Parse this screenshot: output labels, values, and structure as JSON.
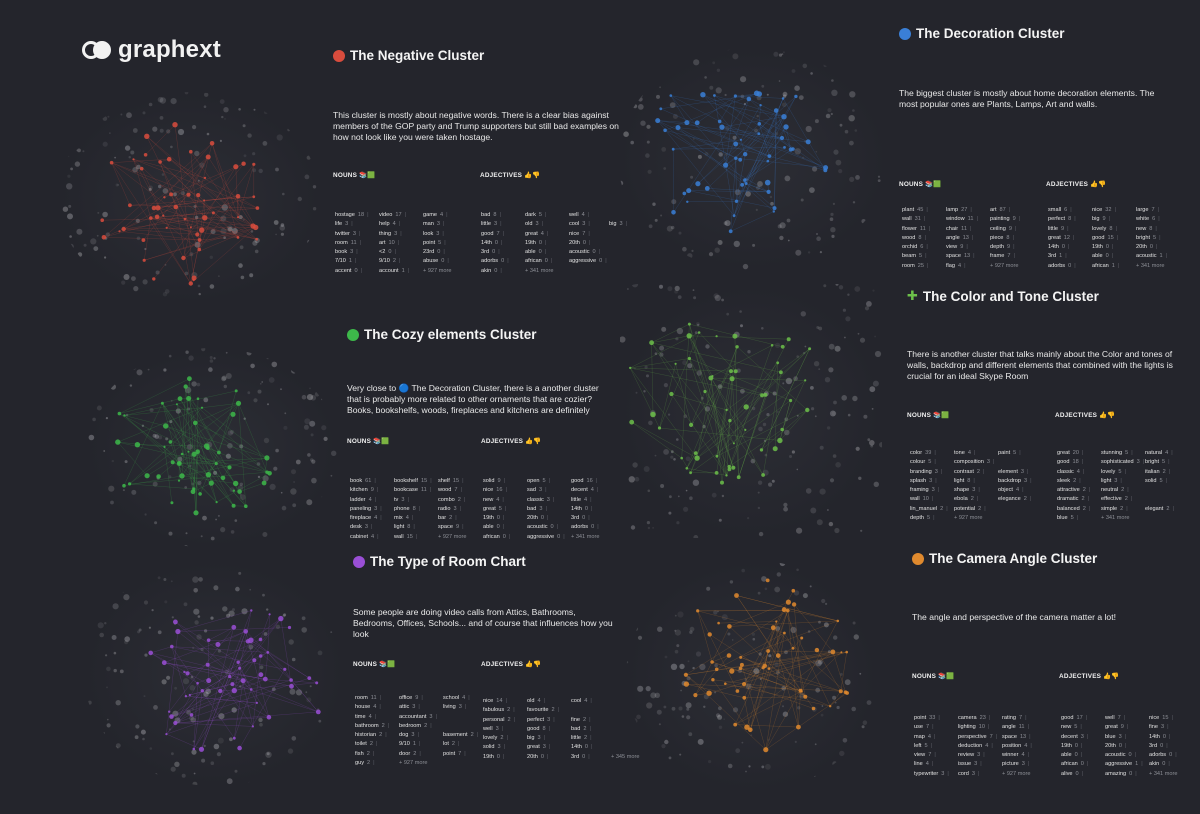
{
  "logo": {
    "text": "graphext"
  },
  "labels": {
    "nouns": "NOUNS",
    "adjectives": "ADJECTIVES",
    "nouns_emoji": "📚🟩",
    "adjectives_emoji": "👍👎"
  },
  "clusters": [
    {
      "id": "negative",
      "title": "The Negative Cluster",
      "color": "#d94c3d",
      "desc": "This cluster is mostly about negative words. There is a clear bias against members of the GOP party and Trump supporters but still bad examples on how not look like you were taken hostage.",
      "nouns": [
        [
          "hostage",
          "18",
          "video",
          "17",
          "game",
          "4"
        ],
        [
          "life",
          "3",
          "help",
          "4",
          "man",
          "3"
        ],
        [
          "twitter",
          "3",
          "thing",
          "3",
          "look",
          "3"
        ],
        [
          "room",
          "11",
          "art",
          "10",
          "point",
          "5"
        ],
        [
          "book",
          "3",
          "<2",
          "0",
          "23rd",
          "0"
        ],
        [
          "7/10",
          "1",
          "9/10",
          "2",
          "abuse",
          "0"
        ],
        [
          "accent",
          "0",
          "account",
          "1",
          "+ 927 more",
          ""
        ]
      ],
      "adjectives": [
        [
          "bad",
          "8",
          "dark",
          "5",
          "well",
          "4"
        ],
        [
          "little",
          "3",
          "old",
          "3",
          "cool",
          "3",
          "big",
          "3"
        ],
        [
          "good",
          "7",
          "great",
          "4",
          "nice",
          "7"
        ],
        [
          "14th",
          "0",
          "19th",
          "0",
          "20th",
          "0"
        ],
        [
          "3rd",
          "0",
          "able",
          "0",
          "acoustic",
          "0"
        ],
        [
          "adorbs",
          "0",
          "african",
          "0",
          "aggressive",
          "0"
        ],
        [
          "akin",
          "0",
          "+ 341 more",
          ""
        ]
      ]
    },
    {
      "id": "decoration",
      "title": "The Decoration Cluster",
      "color": "#3a7fd6",
      "desc": "The biggest cluster is mostly about home decoration elements. The most popular ones are Plants, Lamps, Art and walls.",
      "nouns": [
        [
          "plant",
          "45",
          "lamp",
          "27",
          "art",
          "87"
        ],
        [
          "wall",
          "31",
          "window",
          "11",
          "painting",
          "9"
        ],
        [
          "flower",
          "11",
          "chair",
          "11",
          "ceiling",
          "9"
        ],
        [
          "wood",
          "8",
          "angle",
          "13",
          "piece",
          "8"
        ],
        [
          "orchid",
          "6",
          "view",
          "9",
          "depth",
          "9"
        ],
        [
          "beam",
          "5",
          "space",
          "13",
          "frame",
          "7"
        ],
        [
          "room",
          "25",
          "flag",
          "4",
          "+ 927 more",
          ""
        ]
      ],
      "adjectives": [
        [
          "small",
          "6",
          "nice",
          "32",
          "large",
          "7"
        ],
        [
          "perfect",
          "8",
          "big",
          "9",
          "white",
          "6"
        ],
        [
          "little",
          "9",
          "lovely",
          "8",
          "new",
          "8"
        ],
        [
          "great",
          "12",
          "good",
          "15",
          "bright",
          "5"
        ],
        [
          "14th",
          "0",
          "19th",
          "0",
          "20th",
          "0"
        ],
        [
          "3rd",
          "1",
          "able",
          "0",
          "acoustic",
          "1"
        ],
        [
          "adorbs",
          "0",
          "african",
          "1",
          "+ 341 more",
          ""
        ]
      ]
    },
    {
      "id": "cozy",
      "title": "The Cozy elements Cluster",
      "color": "#3db84a",
      "desc": "Very close to 🔵 The Decoration Cluster, there is a another cluster that is probably more related to other ornaments that are cozier? Books, bookshelfs, woods, fireplaces and kitchens are definitely",
      "nouns": [
        [
          "book",
          "61",
          "bookshelf",
          "15",
          "shelf",
          "15"
        ],
        [
          "kitchen",
          "9",
          "bookcase",
          "11",
          "wood",
          "7"
        ],
        [
          "ladder",
          "4",
          "tv",
          "3",
          "combo",
          "2"
        ],
        [
          "paneling",
          "3",
          "phone",
          "8",
          "radio",
          "3"
        ],
        [
          "fireplace",
          "4",
          "mix",
          "4",
          "bar",
          "2"
        ],
        [
          "desk",
          "3",
          "light",
          "8",
          "space",
          "9"
        ],
        [
          "cabinet",
          "4",
          "wall",
          "15",
          "+ 927 more",
          ""
        ]
      ],
      "adjectives": [
        [
          "solid",
          "9",
          "open",
          "5",
          "good",
          "16"
        ],
        [
          "nice",
          "16",
          "sad",
          "3",
          "decent",
          "4"
        ],
        [
          "new",
          "4",
          "classic",
          "3",
          "little",
          "4"
        ],
        [
          "great",
          "5",
          "bad",
          "3",
          "14th",
          "0"
        ],
        [
          "19th",
          "0",
          "20th",
          "0",
          "3rd",
          "0"
        ],
        [
          "able",
          "0",
          "acoustic",
          "0",
          "adorbs",
          "0"
        ],
        [
          "african",
          "0",
          "aggressive",
          "0",
          "+ 341 more",
          ""
        ]
      ]
    },
    {
      "id": "color",
      "title": "The Color and Tone Cluster",
      "color": "#6cc04a",
      "desc": "There is another cluster that talks mainly about the Color and tones of walls, backdrop and different elements that combined with the lights is crucial for an ideal Skype Room",
      "nouns": [
        [
          "color",
          "39",
          "tone",
          "4",
          "paint",
          "5"
        ],
        [
          "colour",
          "5",
          "composition",
          "3"
        ],
        [
          "branding",
          "3",
          "contrast",
          "2",
          "element",
          "3"
        ],
        [
          "splash",
          "3",
          "light",
          "8",
          "backdrop",
          "3"
        ],
        [
          "framing",
          "3",
          "shape",
          "3",
          "object",
          "4"
        ],
        [
          "wall",
          "10",
          "ebola",
          "2",
          "elegance",
          "2"
        ],
        [
          "lin_manuel",
          "2",
          "potential",
          "2"
        ],
        [
          "depth",
          "5",
          "+ 927 more",
          ""
        ]
      ],
      "adjectives": [
        [
          "great",
          "20",
          "stunning",
          "5",
          "natural",
          "4"
        ],
        [
          "good",
          "18",
          "sophisticated",
          "3",
          "bright",
          "5"
        ],
        [
          "classic",
          "4",
          "lovely",
          "5",
          "italian",
          "2"
        ],
        [
          "sleek",
          "2",
          "light",
          "3",
          "solid",
          "5"
        ],
        [
          "attractive",
          "2",
          "neutral",
          "2"
        ],
        [
          "dramatic",
          "2",
          "effective",
          "2"
        ],
        [
          "balanced",
          "2",
          "simple",
          "2",
          "elegant",
          "2"
        ],
        [
          "blue",
          "5",
          "+ 341 more",
          ""
        ]
      ]
    },
    {
      "id": "room",
      "title": "The Type of Room Chart",
      "color": "#9a4fd6",
      "desc": "Some people are doing video calls from Attics, Bathrooms, Bedrooms, Offices, Schools... and of course that influences how you look",
      "nouns": [
        [
          "room",
          "11",
          "office",
          "9",
          "school",
          "4"
        ],
        [
          "house",
          "4",
          "attic",
          "3",
          "living",
          "3"
        ],
        [
          "time",
          "4",
          "accountant",
          "3"
        ],
        [
          "bathroom",
          "2",
          "bedroom",
          "2"
        ],
        [
          "historian",
          "2",
          "dog",
          "3",
          "basement",
          "2"
        ],
        [
          "toilet",
          "2",
          "9/10",
          "1",
          "lot",
          "2"
        ],
        [
          "fish",
          "2",
          "door",
          "2",
          "point",
          "7"
        ],
        [
          "guy",
          "2",
          "+ 927 more",
          ""
        ]
      ],
      "adjectives": [
        [
          "nice",
          "14",
          "old",
          "4",
          "cool",
          "4"
        ],
        [
          "fabulous",
          "2",
          "favourite",
          "2"
        ],
        [
          "personal",
          "2",
          "perfect",
          "3",
          "fine",
          "2"
        ],
        [
          "well",
          "3",
          "good",
          "8",
          "bad",
          "2"
        ],
        [
          "lovely",
          "2",
          "big",
          "3",
          "little",
          "2"
        ],
        [
          "solid",
          "3",
          "great",
          "3",
          "14th",
          "0"
        ],
        [
          "19th",
          "0",
          "20th",
          "0",
          "3rd",
          "0",
          "+ 345 more"
        ]
      ]
    },
    {
      "id": "camera",
      "title": "The Camera Angle Cluster",
      "color": "#e08a2e",
      "desc": "The angle and perspective of the camera matter a lot!",
      "nouns": [
        [
          "point",
          "33",
          "camera",
          "23",
          "rating",
          "7"
        ],
        [
          "use",
          "7",
          "lighting",
          "10",
          "angle",
          "11"
        ],
        [
          "map",
          "4",
          "perspective",
          "7",
          "space",
          "13"
        ],
        [
          "left",
          "5",
          "deduction",
          "4",
          "position",
          "4"
        ],
        [
          "view",
          "7",
          "review",
          "3",
          "winner",
          "4"
        ],
        [
          "line",
          "4",
          "issue",
          "3",
          "picture",
          "3"
        ],
        [
          "typewriter",
          "3",
          "cord",
          "3",
          "+ 927 more",
          ""
        ]
      ],
      "adjectives": [
        [
          "good",
          "17",
          "well",
          "7",
          "nice",
          "15"
        ],
        [
          "new",
          "5",
          "great",
          "9",
          "fine",
          "3"
        ],
        [
          "decent",
          "3",
          "blue",
          "3",
          "14th",
          "0"
        ],
        [
          "19th",
          "0",
          "20th",
          "0",
          "3rd",
          "0"
        ],
        [
          "able",
          "0",
          "acoustic",
          "0",
          "adorbs",
          "0"
        ],
        [
          "african",
          "0",
          "aggressive",
          "1",
          "akin",
          "0"
        ],
        [
          "alive",
          "0",
          "amazing",
          "0",
          "+ 341 more",
          ""
        ]
      ]
    }
  ]
}
